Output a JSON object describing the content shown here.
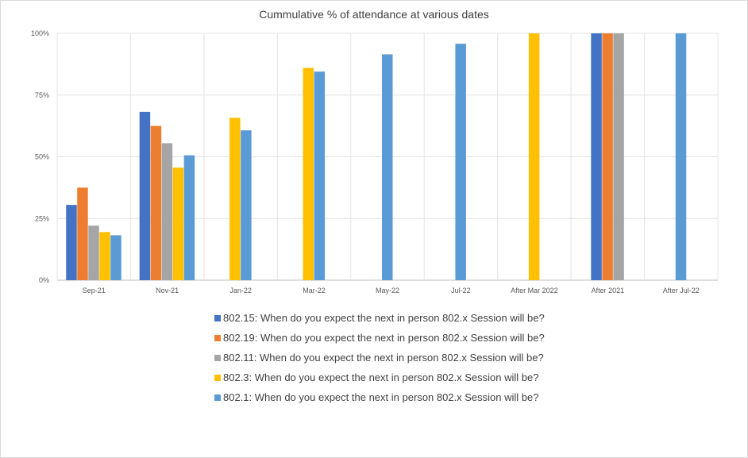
{
  "chart_data": {
    "type": "bar",
    "title": "Cummulative  % of attendance at various dates",
    "xlabel": "",
    "ylabel": "",
    "ylim": [
      0,
      100
    ],
    "yticks": [
      "0%",
      "25%",
      "50%",
      "75%",
      "100%"
    ],
    "grid": true,
    "legend_position": "bottom",
    "categories": [
      "Sep-21",
      "Nov-21",
      "Jan-22",
      "Mar-22",
      "May-22",
      "Jul-22",
      "After Mar  2022",
      "After 2021",
      "After Jul-22"
    ],
    "series": [
      {
        "name": "802.15: When do you expect the next in person 802.x Session will be?",
        "color": "#4472c4",
        "values": [
          30.5,
          68.2,
          null,
          null,
          null,
          null,
          null,
          100,
          null
        ]
      },
      {
        "name": "802.19: When do you expect the next in person 802.x Session will be?",
        "color": "#ed7d31",
        "values": [
          37.5,
          62.5,
          null,
          null,
          null,
          null,
          null,
          100,
          null
        ]
      },
      {
        "name": "802.11: When do you expect the next in person 802.x Session will be?",
        "color": "#a5a5a5",
        "values": [
          22.1,
          55.5,
          null,
          null,
          null,
          null,
          null,
          100,
          null
        ]
      },
      {
        "name": "802.3: When do you expect the next in person 802.x Session will be?",
        "color": "#ffc000",
        "values": [
          19.5,
          45.6,
          65.8,
          86.0,
          null,
          null,
          100,
          null,
          null
        ]
      },
      {
        "name": "802.1: When do you expect the next in person 802.x Session will be?",
        "color": "#5b9bd5",
        "values": [
          18.2,
          50.6,
          60.7,
          84.5,
          91.5,
          95.8,
          null,
          null,
          100
        ]
      }
    ]
  }
}
